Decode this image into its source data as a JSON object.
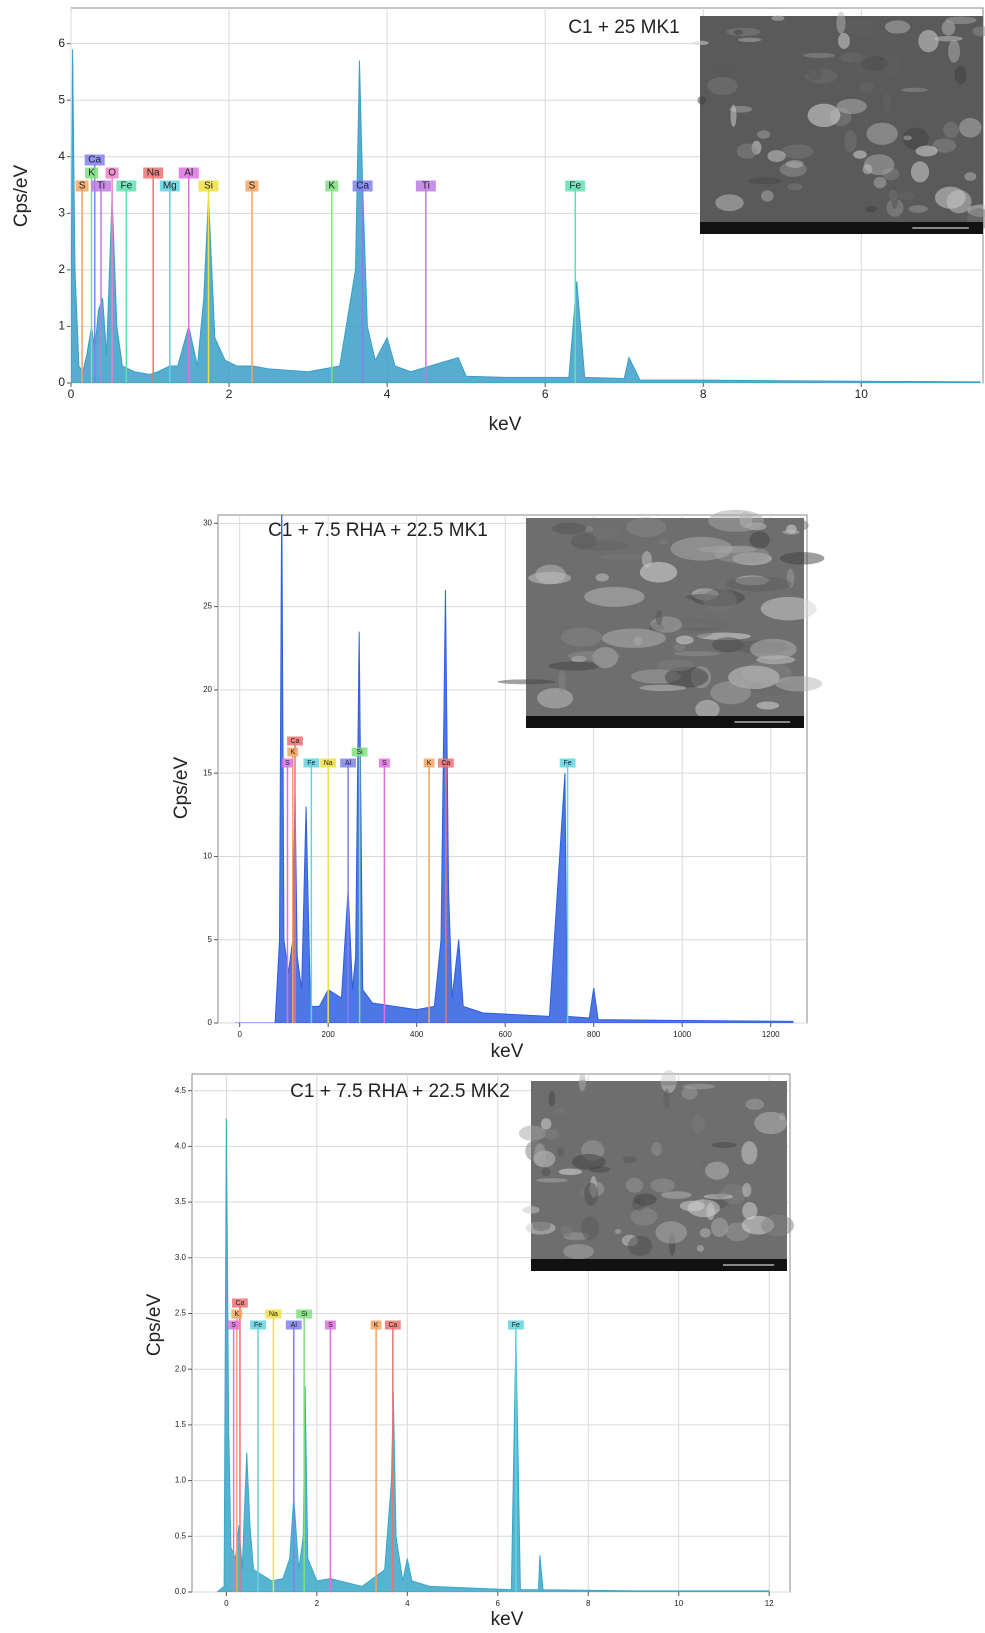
{
  "chart_data": [
    {
      "type": "line",
      "title": "C1 + 25 MK1",
      "x_label": "keV",
      "y_label": "Cps/eV",
      "xlim": [
        0,
        11.54
      ],
      "ylim": [
        0,
        6.63
      ],
      "xticks": [
        0,
        2,
        4,
        6,
        8,
        10
      ],
      "yticks": [
        0,
        1,
        2,
        3,
        4,
        5,
        6
      ],
      "grid": true,
      "series": [
        {
          "color": "#3a9fc7",
          "x": [
            0,
            0.02,
            0.05,
            0.1,
            0.15,
            0.2,
            0.26,
            0.3,
            0.35,
            0.4,
            0.45,
            0.52,
            0.58,
            0.65,
            0.8,
            1.0,
            1.1,
            1.25,
            1.35,
            1.49,
            1.6,
            1.68,
            1.74,
            1.82,
            1.95,
            2.1,
            2.3,
            2.5,
            3.0,
            3.4,
            3.6,
            3.65,
            3.69,
            3.75,
            3.85,
            4.0,
            4.1,
            4.3,
            4.9,
            5.0,
            5.5,
            6.3,
            6.4,
            6.5,
            7.0,
            7.06,
            7.2,
            8,
            9,
            10,
            11.5
          ],
          "values": [
            0.8,
            5.9,
            2,
            0.3,
            0.2,
            0.5,
            1.0,
            0.6,
            1.3,
            1.5,
            0.5,
            3.3,
            1.0,
            0.3,
            0.2,
            0.15,
            0.2,
            0.3,
            0.3,
            1.0,
            0.3,
            1.5,
            3.3,
            0.8,
            0.4,
            0.3,
            0.3,
            0.25,
            0.2,
            0.3,
            2,
            5.7,
            3.5,
            1.0,
            0.4,
            0.8,
            0.3,
            0.2,
            0.45,
            0.12,
            0.1,
            0.1,
            1.8,
            0.1,
            0.08,
            0.45,
            0.05,
            0.05,
            0.04,
            0.03,
            0.02
          ]
        }
      ],
      "markers": [
        {
          "label": "S",
          "x": 0.14,
          "color": "#f4a460"
        },
        {
          "label": "Ti",
          "x": 0.38,
          "color": "#c07ae0"
        },
        {
          "label": "O",
          "x": 0.52,
          "color": "#ee82c8"
        },
        {
          "label": "Mg",
          "x": 1.25,
          "color": "#5fd3e0"
        },
        {
          "label": "K",
          "x": 0.26,
          "color": "#7ee07e"
        },
        {
          "label": "Fe",
          "x": 0.7,
          "color": "#60e0b0"
        },
        {
          "label": "Na",
          "x": 1.04,
          "color": "#f07070"
        },
        {
          "label": "Al",
          "x": 1.49,
          "color": "#e070e0"
        },
        {
          "label": "Si",
          "x": 1.74,
          "color": "#f0e040"
        },
        {
          "label": "S",
          "x": 2.29,
          "color": "#f4a460"
        },
        {
          "label": "K",
          "x": 3.3,
          "color": "#7ee07e"
        },
        {
          "label": "Ca",
          "x": 3.69,
          "color": "#8080f0"
        },
        {
          "label": "Ti",
          "x": 4.49,
          "color": "#c07ae0"
        },
        {
          "label": "Fe",
          "x": 6.38,
          "color": "#60e0b0"
        },
        {
          "label": "Ca",
          "x": 0.3,
          "color": "#8080f0"
        }
      ]
    },
    {
      "type": "line",
      "title": "C1 + 7.5 RHA + 22.5 MK1",
      "x_label": "keV",
      "y_label": "Cps/eV",
      "xlim": [
        -49,
        1282
      ],
      "ylim": [
        0,
        30.5
      ],
      "xticks": [
        0,
        200,
        400,
        600,
        800,
        1000,
        1200
      ],
      "yticks": [
        0,
        5,
        10,
        15,
        20,
        25,
        30
      ],
      "grid": true,
      "series": [
        {
          "color": "#2f5fe0",
          "x": [
            -10,
            80,
            90,
            95,
            100,
            110,
            120,
            125,
            130,
            140,
            150,
            160,
            180,
            200,
            230,
            245,
            255,
            262,
            270,
            278,
            300,
            350,
            400,
            440,
            455,
            465,
            472,
            480,
            495,
            505,
            550,
            700,
            735,
            740,
            790,
            800,
            810,
            1000,
            1250
          ],
          "values": [
            0,
            0,
            5,
            32,
            5,
            3,
            5,
            14,
            4,
            2,
            13,
            1,
            1,
            2,
            1.5,
            8,
            2,
            4,
            23.5,
            2,
            1.2,
            1,
            0.8,
            1,
            5,
            26,
            8,
            1.5,
            5,
            1,
            0.6,
            0.4,
            15,
            0.4,
            0.3,
            2.1,
            0.2,
            0.15,
            0.1
          ]
        }
      ],
      "markers": [
        {
          "label": "S",
          "x": 108,
          "color": "#e070e0"
        },
        {
          "label": "K",
          "x": 120,
          "color": "#f4a460"
        },
        {
          "label": "Ca",
          "x": 125,
          "color": "#f07070"
        },
        {
          "label": "Fe",
          "x": 162,
          "color": "#5fd3e0"
        },
        {
          "label": "Na",
          "x": 200,
          "color": "#f0e040"
        },
        {
          "label": "Al",
          "x": 245,
          "color": "#8080f0"
        },
        {
          "label": "Si",
          "x": 271,
          "color": "#7ee07e"
        },
        {
          "label": "S",
          "x": 327,
          "color": "#e070e0"
        },
        {
          "label": "K",
          "x": 428,
          "color": "#f4a460"
        },
        {
          "label": "Ca",
          "x": 466,
          "color": "#f07070"
        },
        {
          "label": "Fe",
          "x": 741,
          "color": "#5fd3e0"
        }
      ]
    },
    {
      "type": "line",
      "title": "C1 + 7.5 RHA + 22.5 MK2",
      "x_label": "keV",
      "y_label": "Cps/eV",
      "xlim": [
        -0.76,
        12.46
      ],
      "ylim": [
        0,
        4.65
      ],
      "xticks": [
        0,
        2,
        4,
        6,
        8,
        10,
        12
      ],
      "yticks": [
        {
          "value": 0,
          "label": "0.0"
        },
        0.5,
        {
          "value": 1,
          "label": "1.0"
        },
        1.5,
        {
          "value": 2,
          "label": "2.0"
        },
        2.5,
        {
          "value": 3,
          "label": "3.0"
        },
        3.5,
        {
          "value": 4,
          "label": "4.0"
        },
        4.5
      ],
      "grid": true,
      "series": [
        {
          "color": "#3aa7c8",
          "x": [
            -0.2,
            -0.05,
            0,
            0.05,
            0.1,
            0.2,
            0.28,
            0.35,
            0.45,
            0.52,
            0.6,
            0.8,
            1.0,
            1.25,
            1.4,
            1.49,
            1.6,
            1.7,
            1.74,
            1.8,
            2.0,
            2.3,
            2.5,
            3.0,
            3.5,
            3.65,
            3.69,
            3.75,
            3.9,
            4.0,
            4.1,
            4.5,
            6.3,
            6.4,
            6.5,
            6.9,
            6.93,
            7,
            9,
            12
          ],
          "values": [
            0,
            0.05,
            4.25,
            1.5,
            0.4,
            0.3,
            0.6,
            0.2,
            1.25,
            0.6,
            0.2,
            0.15,
            0.1,
            0.12,
            0.3,
            0.85,
            0.2,
            0.5,
            1.85,
            0.3,
            0.1,
            0.12,
            0.1,
            0.05,
            0.2,
            1.0,
            1.8,
            0.5,
            0.1,
            0.3,
            0.1,
            0.05,
            0.02,
            2.3,
            0.02,
            0.02,
            0.33,
            0.02,
            0.01,
            0.01
          ]
        }
      ],
      "markers": [
        {
          "label": "S",
          "x": 0.16,
          "color": "#e070e0"
        },
        {
          "label": "K",
          "x": 0.23,
          "color": "#f4a460"
        },
        {
          "label": "Ca",
          "x": 0.3,
          "color": "#f07070"
        },
        {
          "label": "Fe",
          "x": 0.7,
          "color": "#5fd3e0"
        },
        {
          "label": "Na",
          "x": 1.04,
          "color": "#f0e040"
        },
        {
          "label": "Al",
          "x": 1.49,
          "color": "#8080f0"
        },
        {
          "label": "Si",
          "x": 1.72,
          "color": "#7ee07e"
        },
        {
          "label": "S",
          "x": 2.3,
          "color": "#e070e0"
        },
        {
          "label": "K",
          "x": 3.31,
          "color": "#f4a460"
        },
        {
          "label": "Ca",
          "x": 3.68,
          "color": "#f07070"
        },
        {
          "label": "Fe",
          "x": 6.4,
          "color": "#5fd3e0"
        }
      ]
    }
  ]
}
